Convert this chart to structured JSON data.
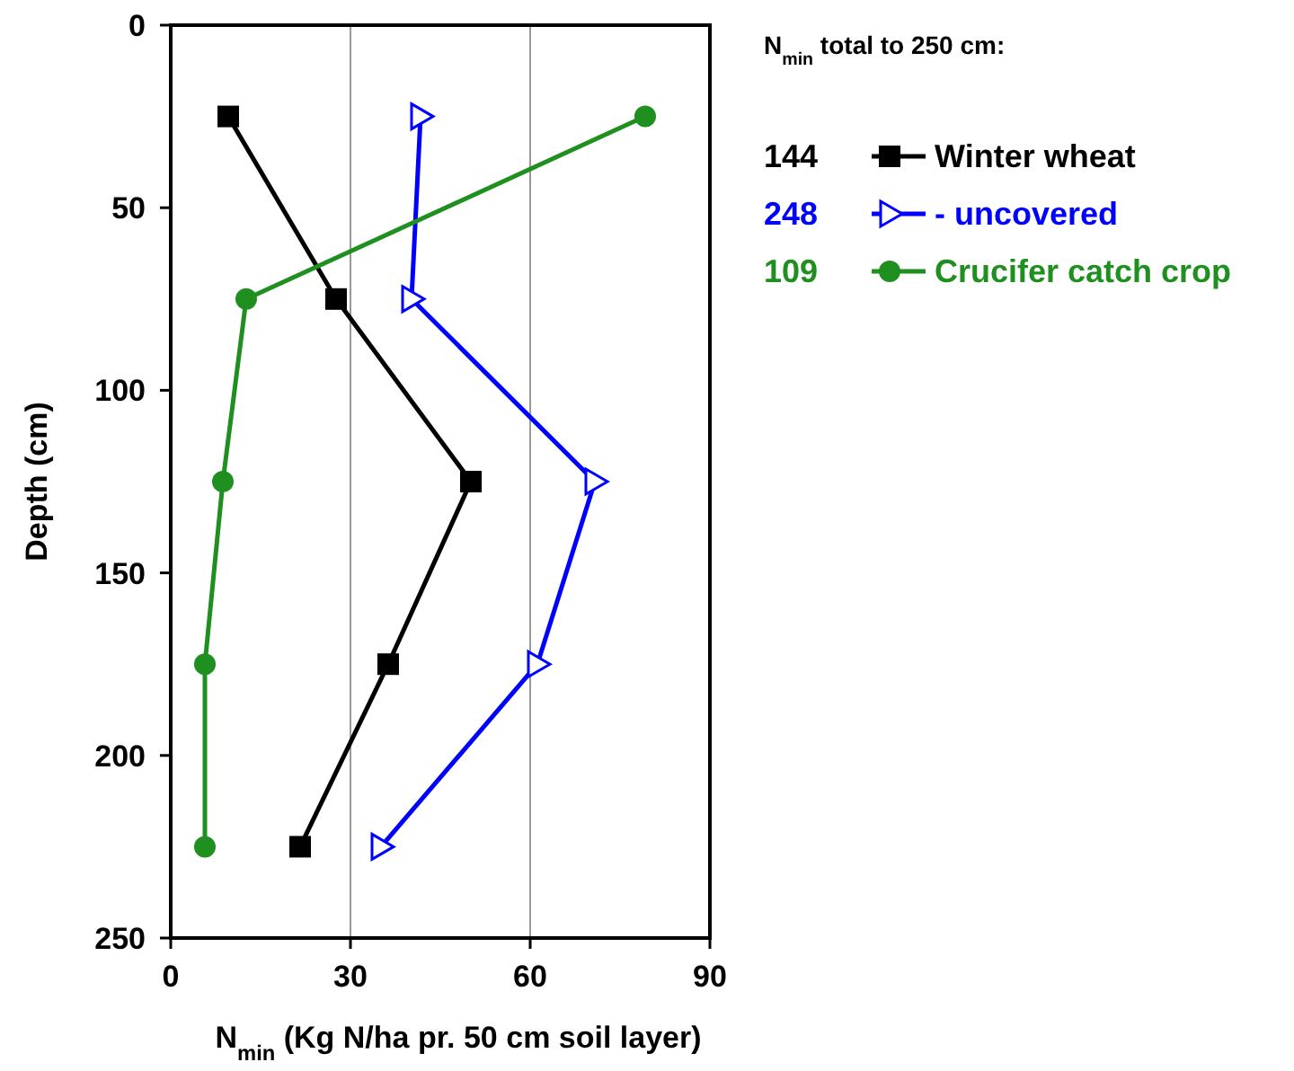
{
  "chart_data": {
    "type": "line",
    "xlabel": "N$_{min}$ (Kg N/ha pr. 50 cm soil layer)",
    "ylabel": "Depth (cm)",
    "legend_title": "N$_{min}$ total to 250 cm:",
    "xlim": [
      0,
      90
    ],
    "xticks": [
      0,
      30,
      60,
      90
    ],
    "ylim": [
      250,
      0
    ],
    "yticks": [
      0,
      50,
      100,
      150,
      200,
      250
    ],
    "grid": "x",
    "legend": "top right",
    "annotations": [
      "144",
      "248",
      "109"
    ],
    "series": [
      {
        "name": "Winter wheat",
        "color": "#000000",
        "marker": "square",
        "x": [
          9.6,
          27.6,
          50.1,
          36.3,
          21.6
        ],
        "values": [
          25,
          75,
          125,
          175,
          225
        ]
      },
      {
        "name": "- uncovered",
        "color": "#0000ff",
        "marker": "triangle",
        "x": [
          41.7,
          40.2,
          70.8,
          61.2,
          35.1
        ],
        "values": [
          25,
          75,
          125,
          175,
          225
        ]
      },
      {
        "name": "Crucifer catch crop",
        "color": "#1f8f1f",
        "marker": "circle",
        "x": [
          79.2,
          12.6,
          8.7,
          5.7,
          5.7
        ],
        "values": [
          25,
          75,
          125,
          175,
          225
        ]
      }
    ]
  }
}
